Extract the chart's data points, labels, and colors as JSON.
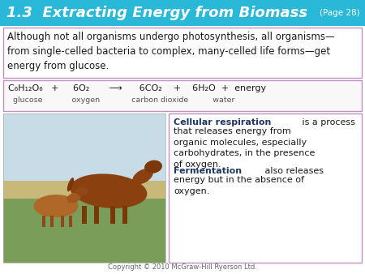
{
  "title": "1.3  Extracting Energy from Biomass",
  "page_ref": "(Page 28)",
  "header_bg": "#29b8d8",
  "header_text_color": "#ffffff",
  "body_bg": "#ffffff",
  "border_color": "#c8a0c8",
  "intro_text": "Although not all organisms undergo photosynthesis, all organisms—\nfrom single-celled bacteria to complex, many-celled life forms—get\nenergy from glucose.",
  "cellular_resp_bold": "Cellular respiration",
  "cellular_resp_rest": " is a process\nthat releases energy from\norganic molecules, especially\ncarbohydrates, in the presence\nof oxygen.",
  "fermentation_bold": "Fermentation",
  "fermentation_rest": " also releases\nenergy but in the absence of\noxygen.",
  "copyright": "Copyright © 2010 McGraw-Hill Ryerson Ltd.",
  "dark_blue": "#1f3864",
  "text_dark": "#1a1a1a",
  "text_color_intro": "#1a1a1a"
}
